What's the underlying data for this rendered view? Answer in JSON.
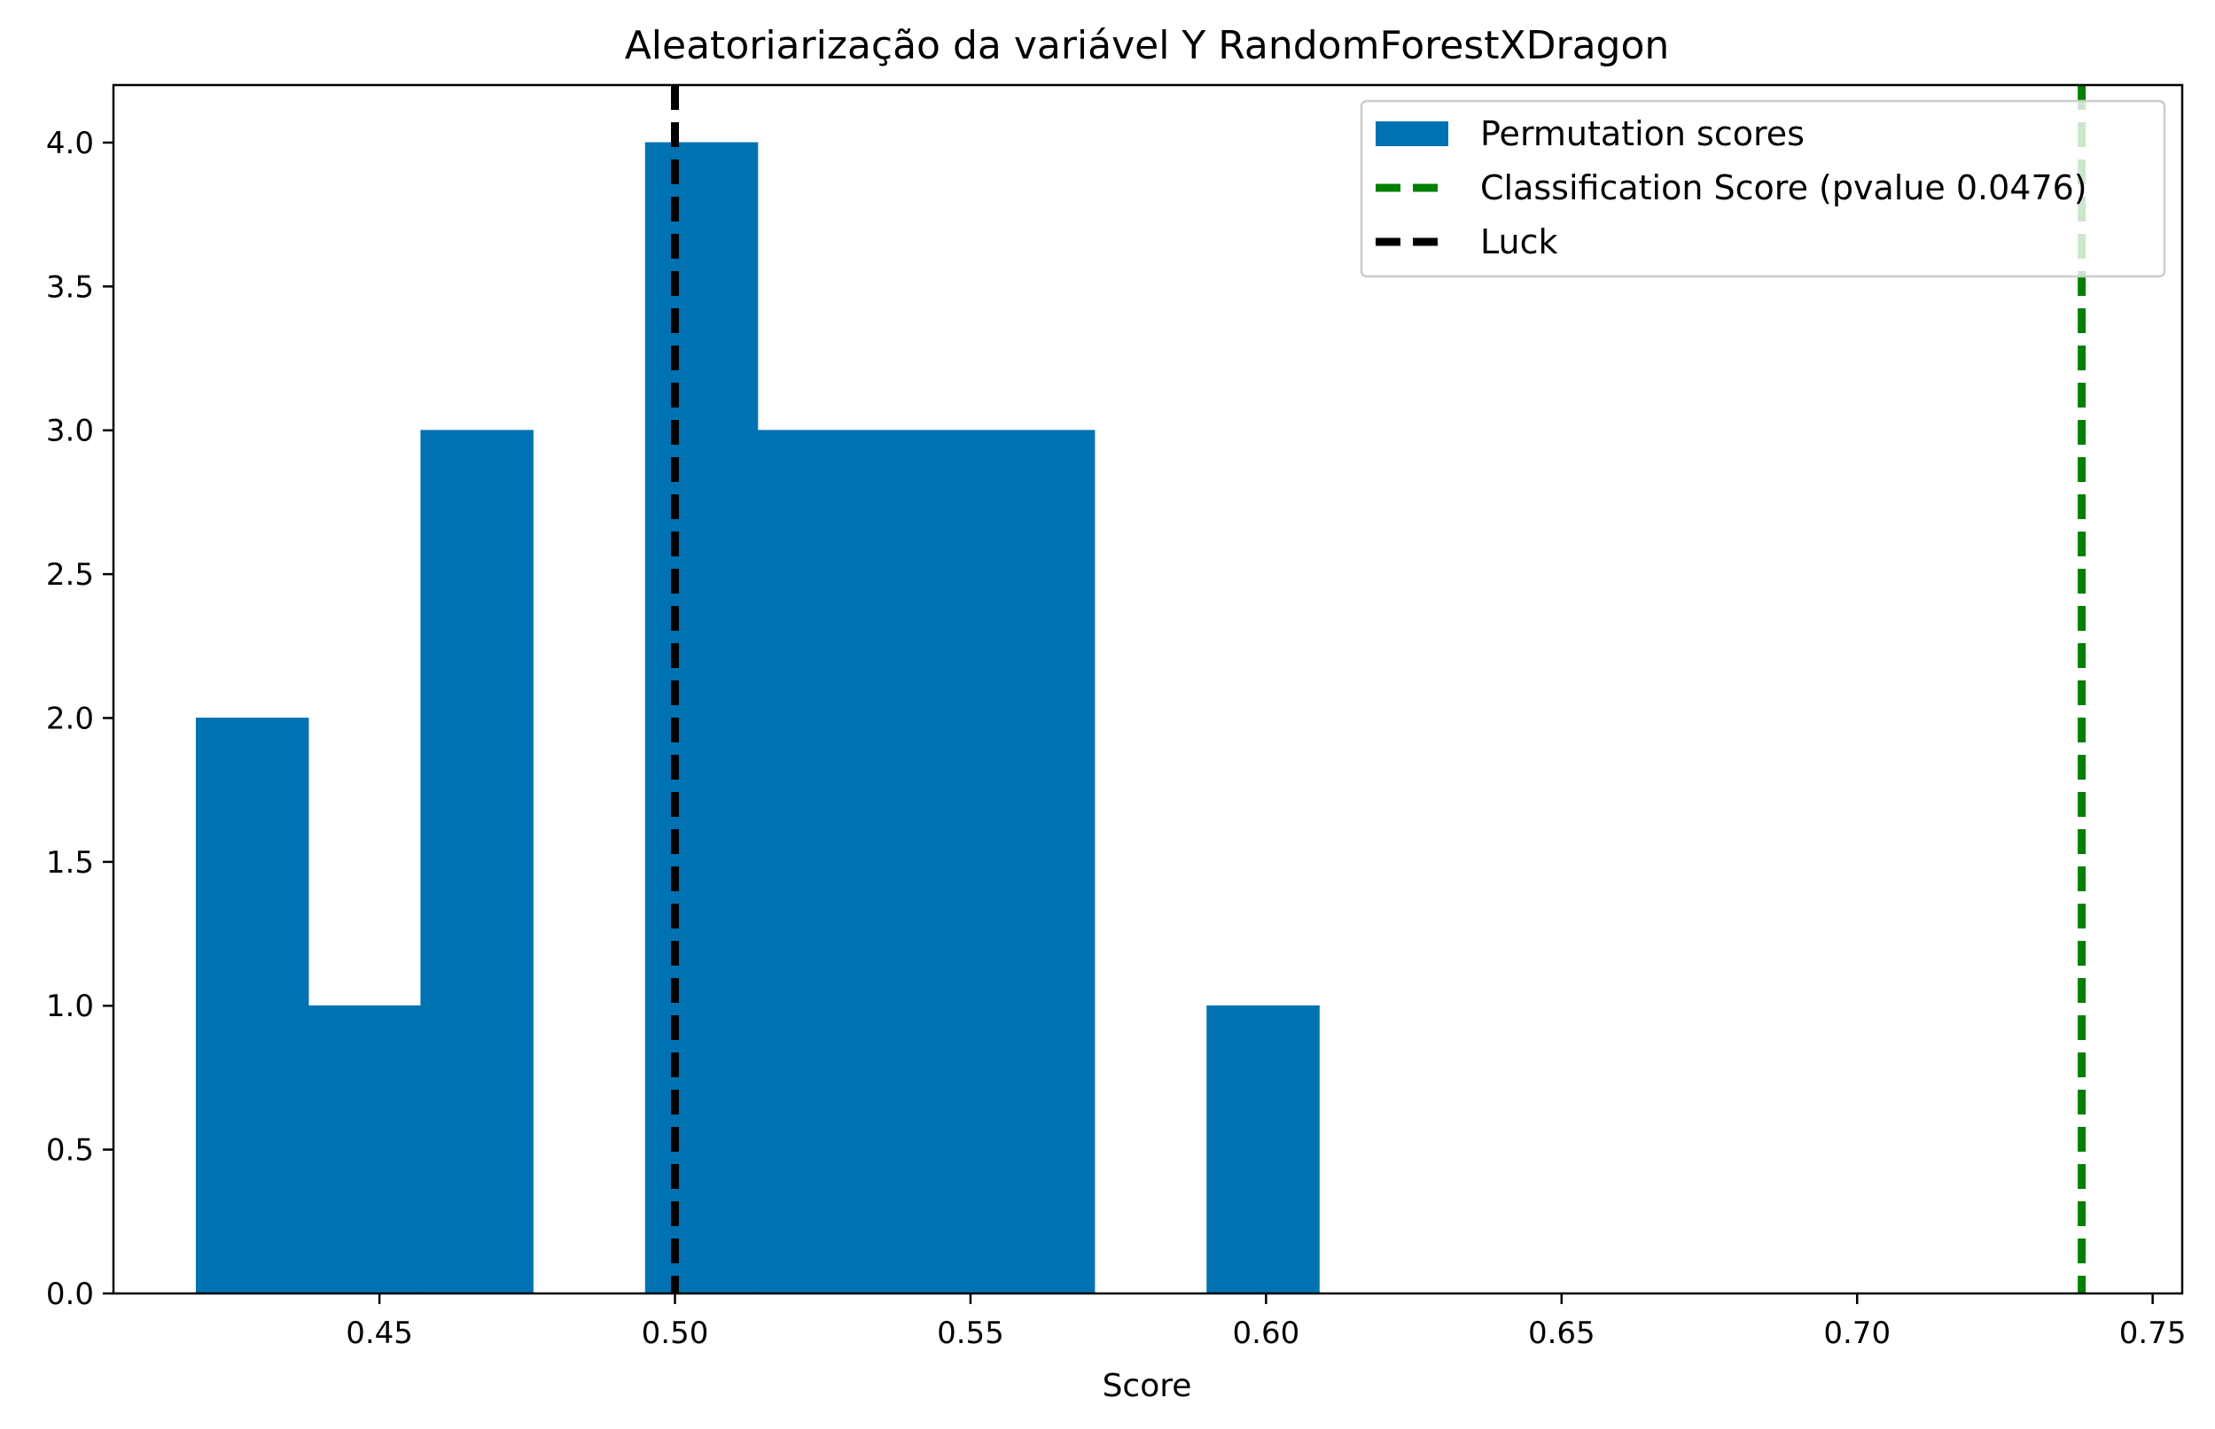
{
  "chart_data": {
    "type": "bar",
    "title": "Aleatoriarização da variável Y RandomForestXDragon",
    "xlabel": "Score",
    "ylabel": "",
    "xlim": [
      0.405,
      0.755
    ],
    "ylim": [
      0,
      4.2
    ],
    "x_ticks": [
      0.45,
      0.5,
      0.55,
      0.6,
      0.65,
      0.7,
      0.75
    ],
    "x_tick_labels": [
      "0.45",
      "0.50",
      "0.55",
      "0.60",
      "0.65",
      "0.70",
      "0.75"
    ],
    "y_ticks": [
      0,
      0.5,
      1,
      1.5,
      2,
      2.5,
      3,
      3.5,
      4
    ],
    "y_tick_labels": [
      "0.0",
      "0.5",
      "1.0",
      "1.5",
      "2.0",
      "2.5",
      "3.0",
      "3.5",
      "4.0"
    ],
    "grid": false,
    "legend_position": "top-right",
    "series": [
      {
        "name": "Permutation scores",
        "kind": "histogram",
        "color": "#0072B2",
        "bins": [
          {
            "x0": 0.419,
            "x1": 0.438,
            "count": 2
          },
          {
            "x0": 0.438,
            "x1": 0.457,
            "count": 1
          },
          {
            "x0": 0.457,
            "x1": 0.476,
            "count": 3
          },
          {
            "x0": 0.476,
            "x1": 0.495,
            "count": 0
          },
          {
            "x0": 0.495,
            "x1": 0.514,
            "count": 4
          },
          {
            "x0": 0.514,
            "x1": 0.533,
            "count": 3
          },
          {
            "x0": 0.533,
            "x1": 0.552,
            "count": 3
          },
          {
            "x0": 0.552,
            "x1": 0.571,
            "count": 3
          },
          {
            "x0": 0.571,
            "x1": 0.59,
            "count": 0
          },
          {
            "x0": 0.59,
            "x1": 0.609,
            "count": 1
          }
        ]
      },
      {
        "name": "Classification Score (pvalue 0.0476)",
        "kind": "vline",
        "x": 0.738,
        "color": "#008000",
        "style": "dashed"
      },
      {
        "name": "Luck",
        "kind": "vline",
        "x": 0.5,
        "color": "#000000",
        "style": "dashed"
      }
    ]
  }
}
